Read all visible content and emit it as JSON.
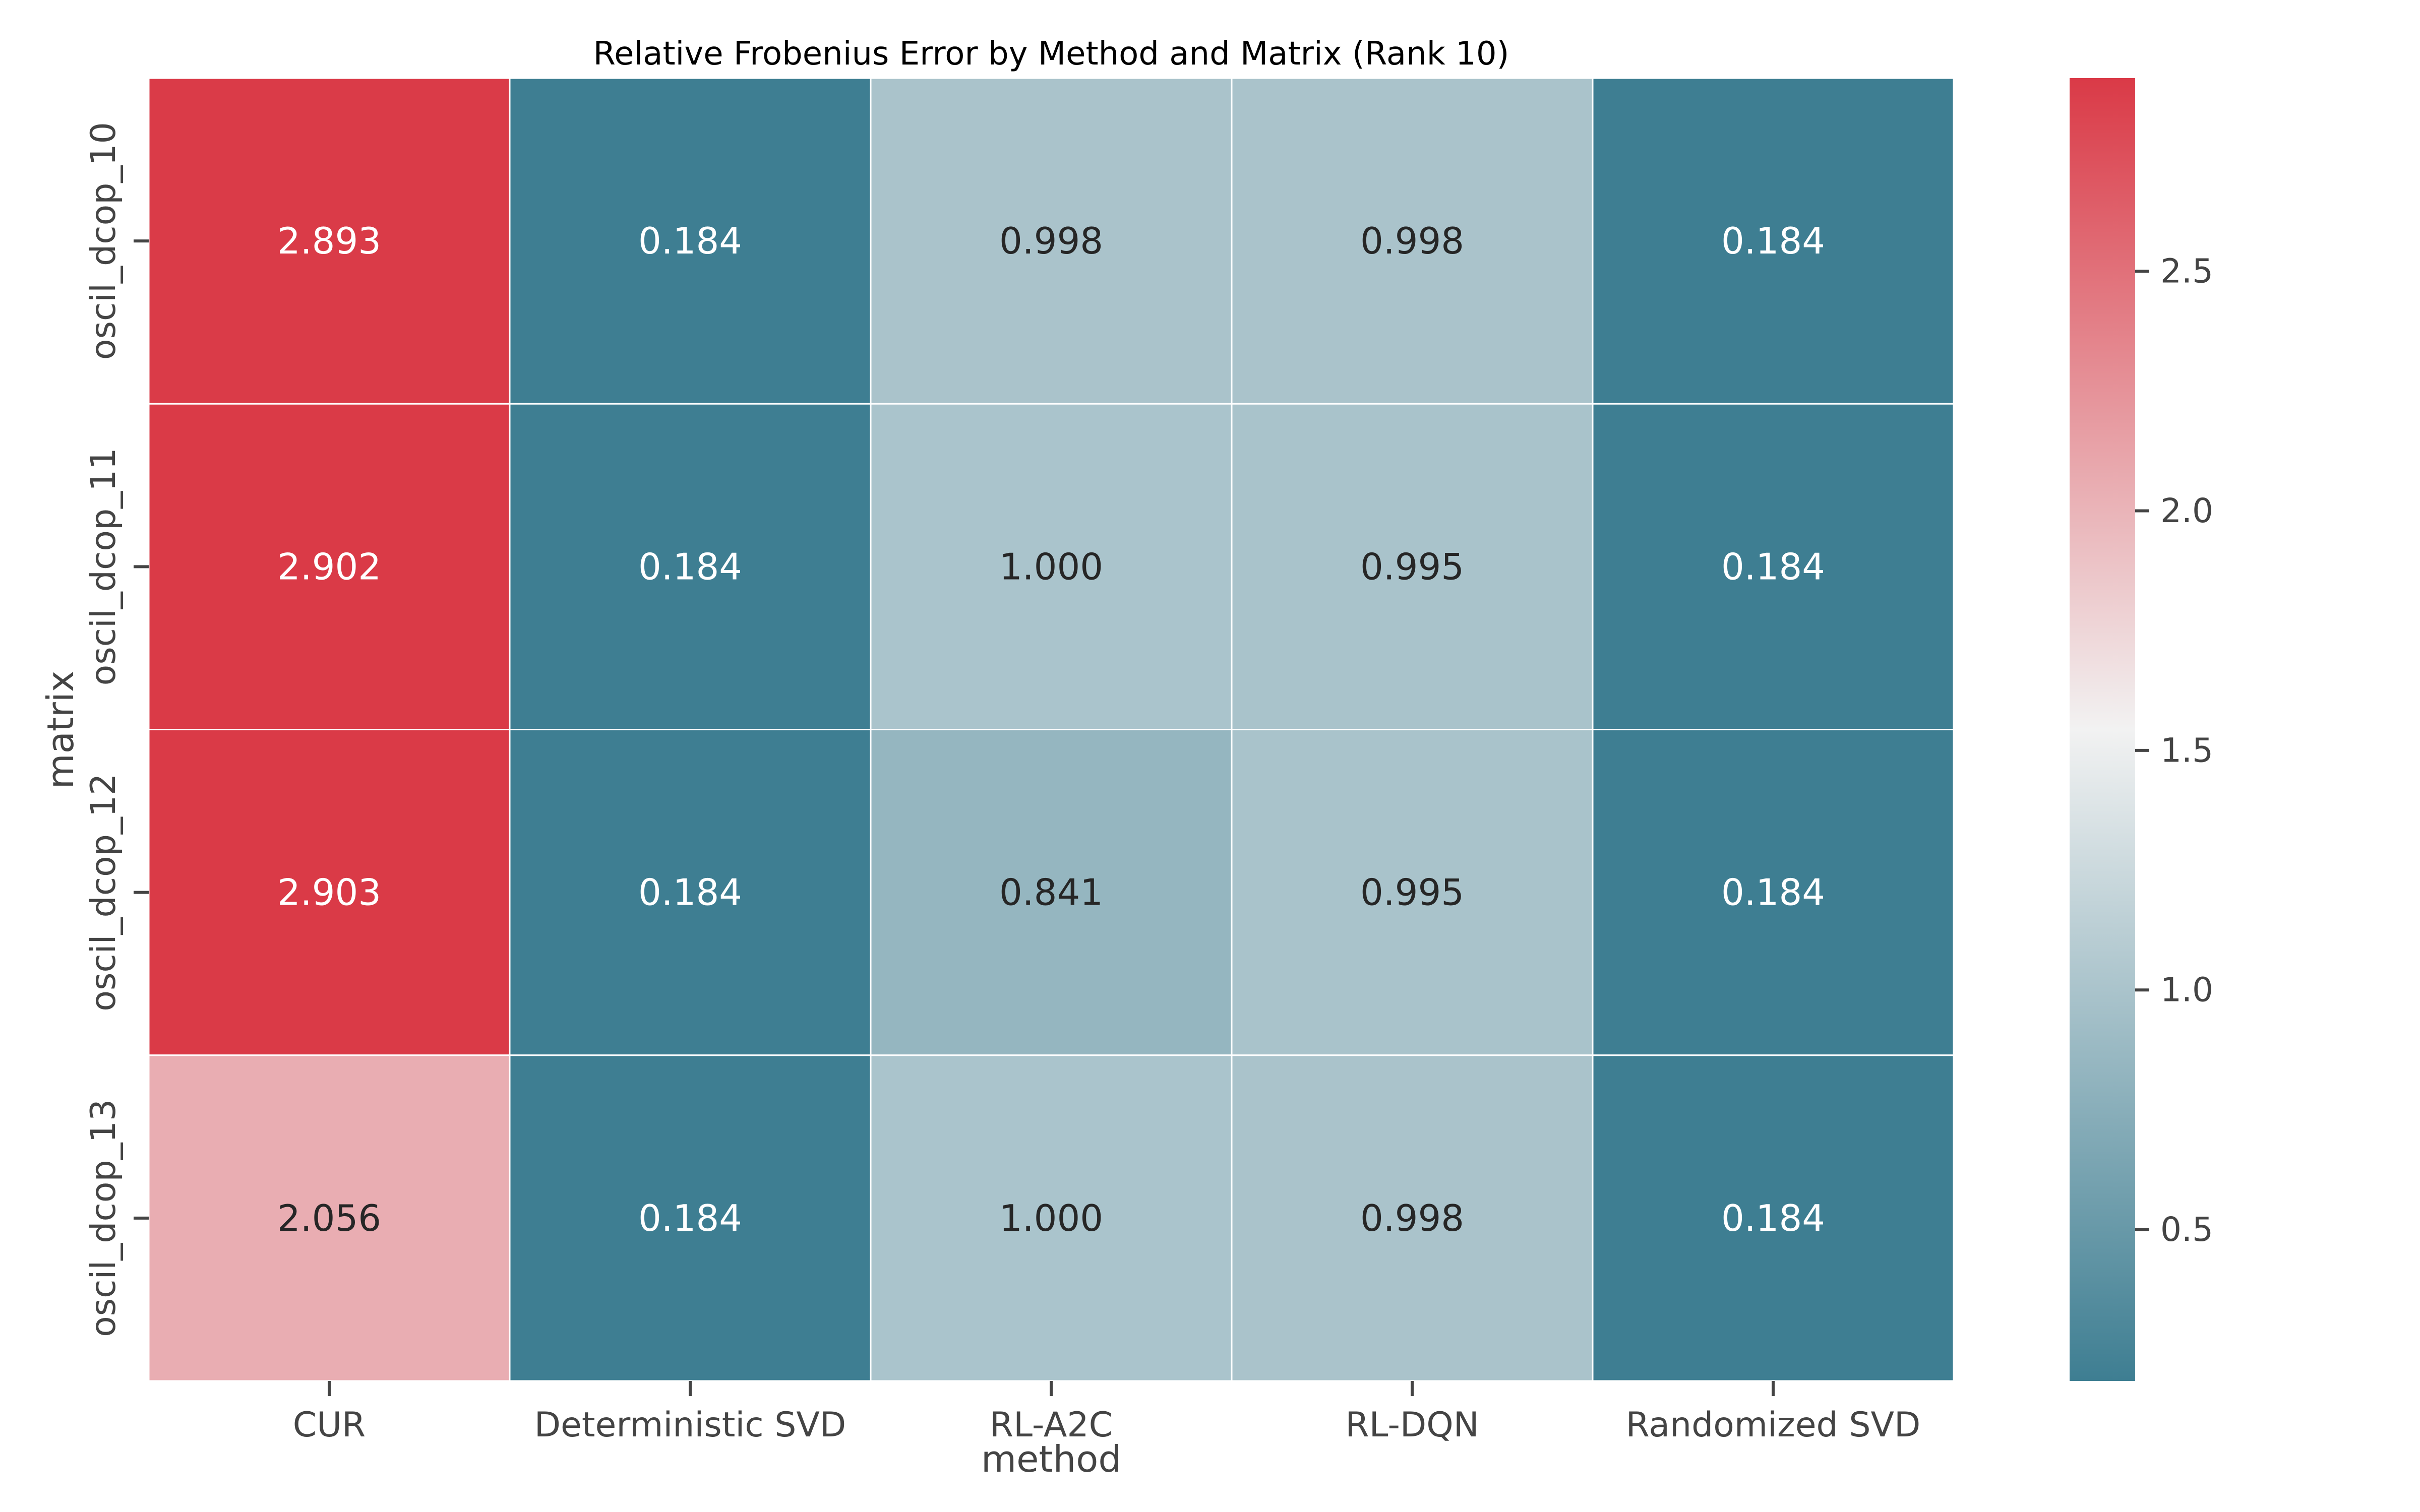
{
  "chart_data": {
    "type": "heatmap",
    "title": "Relative Frobenius Error by Method and Matrix (Rank 10)",
    "xlabel": "method",
    "ylabel": "matrix",
    "x_categories": [
      "CUR",
      "Deterministic SVD",
      "RL-A2C",
      "RL-DQN",
      "Randomized SVD"
    ],
    "y_categories": [
      "oscil_dcop_10",
      "oscil_dcop_11",
      "oscil_dcop_12",
      "oscil_dcop_13"
    ],
    "values": [
      [
        2.893,
        0.184,
        0.998,
        0.998,
        0.184
      ],
      [
        2.902,
        0.184,
        1.0,
        0.995,
        0.184
      ],
      [
        2.903,
        0.184,
        0.841,
        0.995,
        0.184
      ],
      [
        2.056,
        0.184,
        1.0,
        0.998,
        0.184
      ]
    ],
    "value_labels": [
      [
        "2.893",
        "0.184",
        "0.998",
        "0.998",
        "0.184"
      ],
      [
        "2.902",
        "0.184",
        "1.000",
        "0.995",
        "0.184"
      ],
      [
        "2.903",
        "0.184",
        "0.841",
        "0.995",
        "0.184"
      ],
      [
        "2.056",
        "0.184",
        "1.000",
        "0.998",
        "0.184"
      ]
    ],
    "colorbar": {
      "vmin": 0.184,
      "vmax": 2.903,
      "ticks": [
        0.5,
        1.0,
        1.5,
        2.0,
        2.5
      ],
      "tick_labels": [
        "0.5",
        "1.0",
        "1.5",
        "2.0",
        "2.5"
      ]
    },
    "colormap": {
      "low": "#3e7e92",
      "mid": "#f2f2f2",
      "high": "#da3a47"
    },
    "grid": false,
    "legend": "colorbar-right"
  }
}
